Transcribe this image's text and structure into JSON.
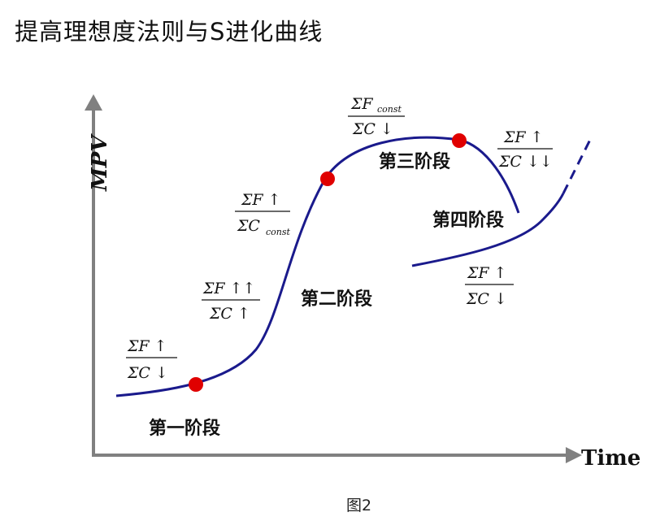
{
  "title": "提高理想度法则与S进化曲线",
  "caption": "图2",
  "axes": {
    "y_label": "MPV",
    "x_label": "Time"
  },
  "colors": {
    "curve": "#1a1a8c",
    "axis": "#808080",
    "point": "#e00000"
  },
  "stages": {
    "s1": "第一阶段",
    "s2": "第二阶段",
    "s3": "第三阶段",
    "s4": "第四阶段"
  },
  "fractions": {
    "f1": {
      "num_sym": "ΣF",
      "num_arrow": "↑",
      "den_sym": "ΣC",
      "den_arrow": "↓"
    },
    "f2": {
      "num_sym": "ΣF",
      "num_arrow": "↑↑",
      "den_sym": "ΣC",
      "den_arrow": "↑"
    },
    "f3": {
      "num_sym": "ΣF",
      "num_arrow": "↑",
      "den_sym": "ΣC",
      "den_sub": "const"
    },
    "f4": {
      "num_sym": "ΣF",
      "num_sub": "const",
      "den_sym": "ΣC",
      "den_arrow": "↓"
    },
    "f5": {
      "num_sym": "ΣF",
      "num_arrow": "↑",
      "den_sym": "ΣC",
      "den_arrow": "↓↓"
    },
    "f6": {
      "num_sym": "ΣF",
      "num_arrow": "↑",
      "den_sym": "ΣC",
      "den_arrow": "↓"
    }
  }
}
